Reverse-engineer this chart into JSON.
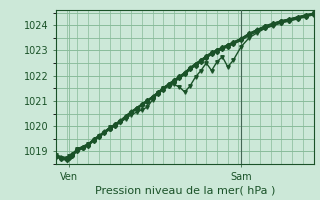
{
  "xlabel": "Pression niveau de la mer( hPa )",
  "bg_color": "#cce8d8",
  "grid_color": "#88bb99",
  "line_color": "#1a5228",
  "ylim": [
    1018.5,
    1024.6
  ],
  "xlim": [
    0,
    96
  ],
  "yticks": [
    1019,
    1020,
    1021,
    1022,
    1023,
    1024
  ],
  "xtick_pos": [
    5,
    69
  ],
  "xtick_labels": [
    "Ven",
    "Sam"
  ],
  "vline_x": 69,
  "series": [
    [
      0,
      1018.8,
      2,
      1018.72,
      4,
      1018.68,
      5,
      1018.75,
      6,
      1018.85,
      8,
      1019.05,
      10,
      1019.15,
      12,
      1019.25,
      14,
      1019.45,
      16,
      1019.6,
      18,
      1019.75,
      20,
      1019.9,
      22,
      1020.05,
      24,
      1020.2,
      26,
      1020.38,
      28,
      1020.55,
      30,
      1020.7,
      32,
      1020.85,
      34,
      1021.0,
      36,
      1021.15,
      38,
      1021.32,
      40,
      1021.5,
      42,
      1021.65,
      44,
      1021.8,
      46,
      1021.95,
      48,
      1022.1,
      50,
      1022.3,
      52,
      1022.45,
      54,
      1022.6,
      56,
      1022.75,
      58,
      1022.9,
      60,
      1023.0,
      62,
      1023.1,
      64,
      1023.2,
      66,
      1023.3,
      69,
      1023.45,
      72,
      1023.65,
      75,
      1023.8,
      78,
      1023.95,
      81,
      1024.05,
      84,
      1024.15,
      87,
      1024.22,
      90,
      1024.3,
      93,
      1024.38,
      96,
      1024.45
    ],
    [
      0,
      1018.82,
      2,
      1018.74,
      4,
      1018.7,
      5,
      1018.78,
      6,
      1018.88,
      8,
      1019.08,
      10,
      1019.18,
      12,
      1019.28,
      14,
      1019.48,
      16,
      1019.62,
      18,
      1019.78,
      20,
      1019.93,
      22,
      1020.08,
      24,
      1020.22,
      26,
      1020.4,
      28,
      1020.57,
      30,
      1020.72,
      32,
      1020.87,
      34,
      1021.02,
      36,
      1021.17,
      38,
      1021.34,
      40,
      1021.52,
      42,
      1021.67,
      44,
      1021.82,
      46,
      1021.97,
      48,
      1022.12,
      50,
      1022.32,
      52,
      1022.47,
      54,
      1022.62,
      56,
      1022.77,
      58,
      1022.92,
      60,
      1023.02,
      62,
      1023.12,
      64,
      1023.22,
      66,
      1023.32,
      69,
      1023.47,
      72,
      1023.67,
      75,
      1023.82,
      78,
      1023.97,
      81,
      1024.07,
      84,
      1024.17,
      87,
      1024.24,
      90,
      1024.32,
      93,
      1024.4,
      96,
      1024.47
    ],
    [
      0,
      1018.85,
      4,
      1018.75,
      5,
      1018.8,
      8,
      1019.1,
      12,
      1019.3,
      16,
      1019.6,
      20,
      1019.95,
      22,
      1020.0,
      24,
      1020.15,
      26,
      1020.3,
      28,
      1020.45,
      30,
      1020.55,
      32,
      1020.65,
      34,
      1020.75,
      36,
      1021.05,
      38,
      1021.3,
      40,
      1021.5,
      42,
      1021.6,
      44,
      1021.65,
      46,
      1021.55,
      48,
      1021.35,
      50,
      1021.6,
      52,
      1021.95,
      54,
      1022.2,
      56,
      1022.5,
      58,
      1022.2,
      60,
      1022.55,
      62,
      1022.75,
      64,
      1022.35,
      66,
      1022.6,
      69,
      1023.15,
      72,
      1023.5,
      75,
      1023.7,
      78,
      1023.88,
      81,
      1023.98,
      84,
      1024.1,
      87,
      1024.18,
      90,
      1024.28,
      93,
      1024.35,
      96,
      1024.48
    ],
    [
      0,
      1018.78,
      2,
      1018.7,
      4,
      1018.65,
      5,
      1018.73,
      6,
      1018.82,
      8,
      1019.02,
      10,
      1019.12,
      12,
      1019.22,
      14,
      1019.42,
      16,
      1019.57,
      18,
      1019.72,
      20,
      1019.87,
      22,
      1020.02,
      24,
      1020.18,
      26,
      1020.35,
      28,
      1020.52,
      30,
      1020.67,
      32,
      1020.82,
      34,
      1020.97,
      36,
      1021.12,
      38,
      1021.28,
      40,
      1021.45,
      42,
      1021.6,
      44,
      1021.75,
      46,
      1021.9,
      48,
      1022.05,
      50,
      1022.25,
      52,
      1022.4,
      54,
      1022.55,
      56,
      1022.7,
      58,
      1022.85,
      60,
      1022.95,
      62,
      1023.05,
      64,
      1023.15,
      66,
      1023.25,
      69,
      1023.4,
      72,
      1023.6,
      75,
      1023.75,
      78,
      1023.9,
      81,
      1024.0,
      84,
      1024.1,
      87,
      1024.17,
      90,
      1024.25,
      93,
      1024.33,
      96,
      1024.42
    ],
    [
      0,
      1018.84,
      2,
      1018.76,
      4,
      1018.72,
      5,
      1018.79,
      6,
      1018.89,
      8,
      1019.09,
      10,
      1019.19,
      12,
      1019.29,
      14,
      1019.49,
      16,
      1019.63,
      18,
      1019.79,
      20,
      1019.94,
      22,
      1020.09,
      24,
      1020.23,
      26,
      1020.41,
      28,
      1020.58,
      30,
      1020.73,
      32,
      1020.88,
      34,
      1021.03,
      36,
      1021.18,
      38,
      1021.35,
      40,
      1021.53,
      42,
      1021.68,
      44,
      1021.83,
      46,
      1021.98,
      48,
      1022.13,
      50,
      1022.33,
      52,
      1022.48,
      54,
      1022.63,
      56,
      1022.78,
      58,
      1022.93,
      60,
      1023.03,
      62,
      1023.13,
      64,
      1023.23,
      66,
      1023.33,
      69,
      1023.48,
      72,
      1023.68,
      75,
      1023.83,
      78,
      1023.98,
      81,
      1024.08,
      84,
      1024.18,
      87,
      1024.25,
      90,
      1024.33,
      93,
      1024.41,
      96,
      1024.48
    ]
  ]
}
